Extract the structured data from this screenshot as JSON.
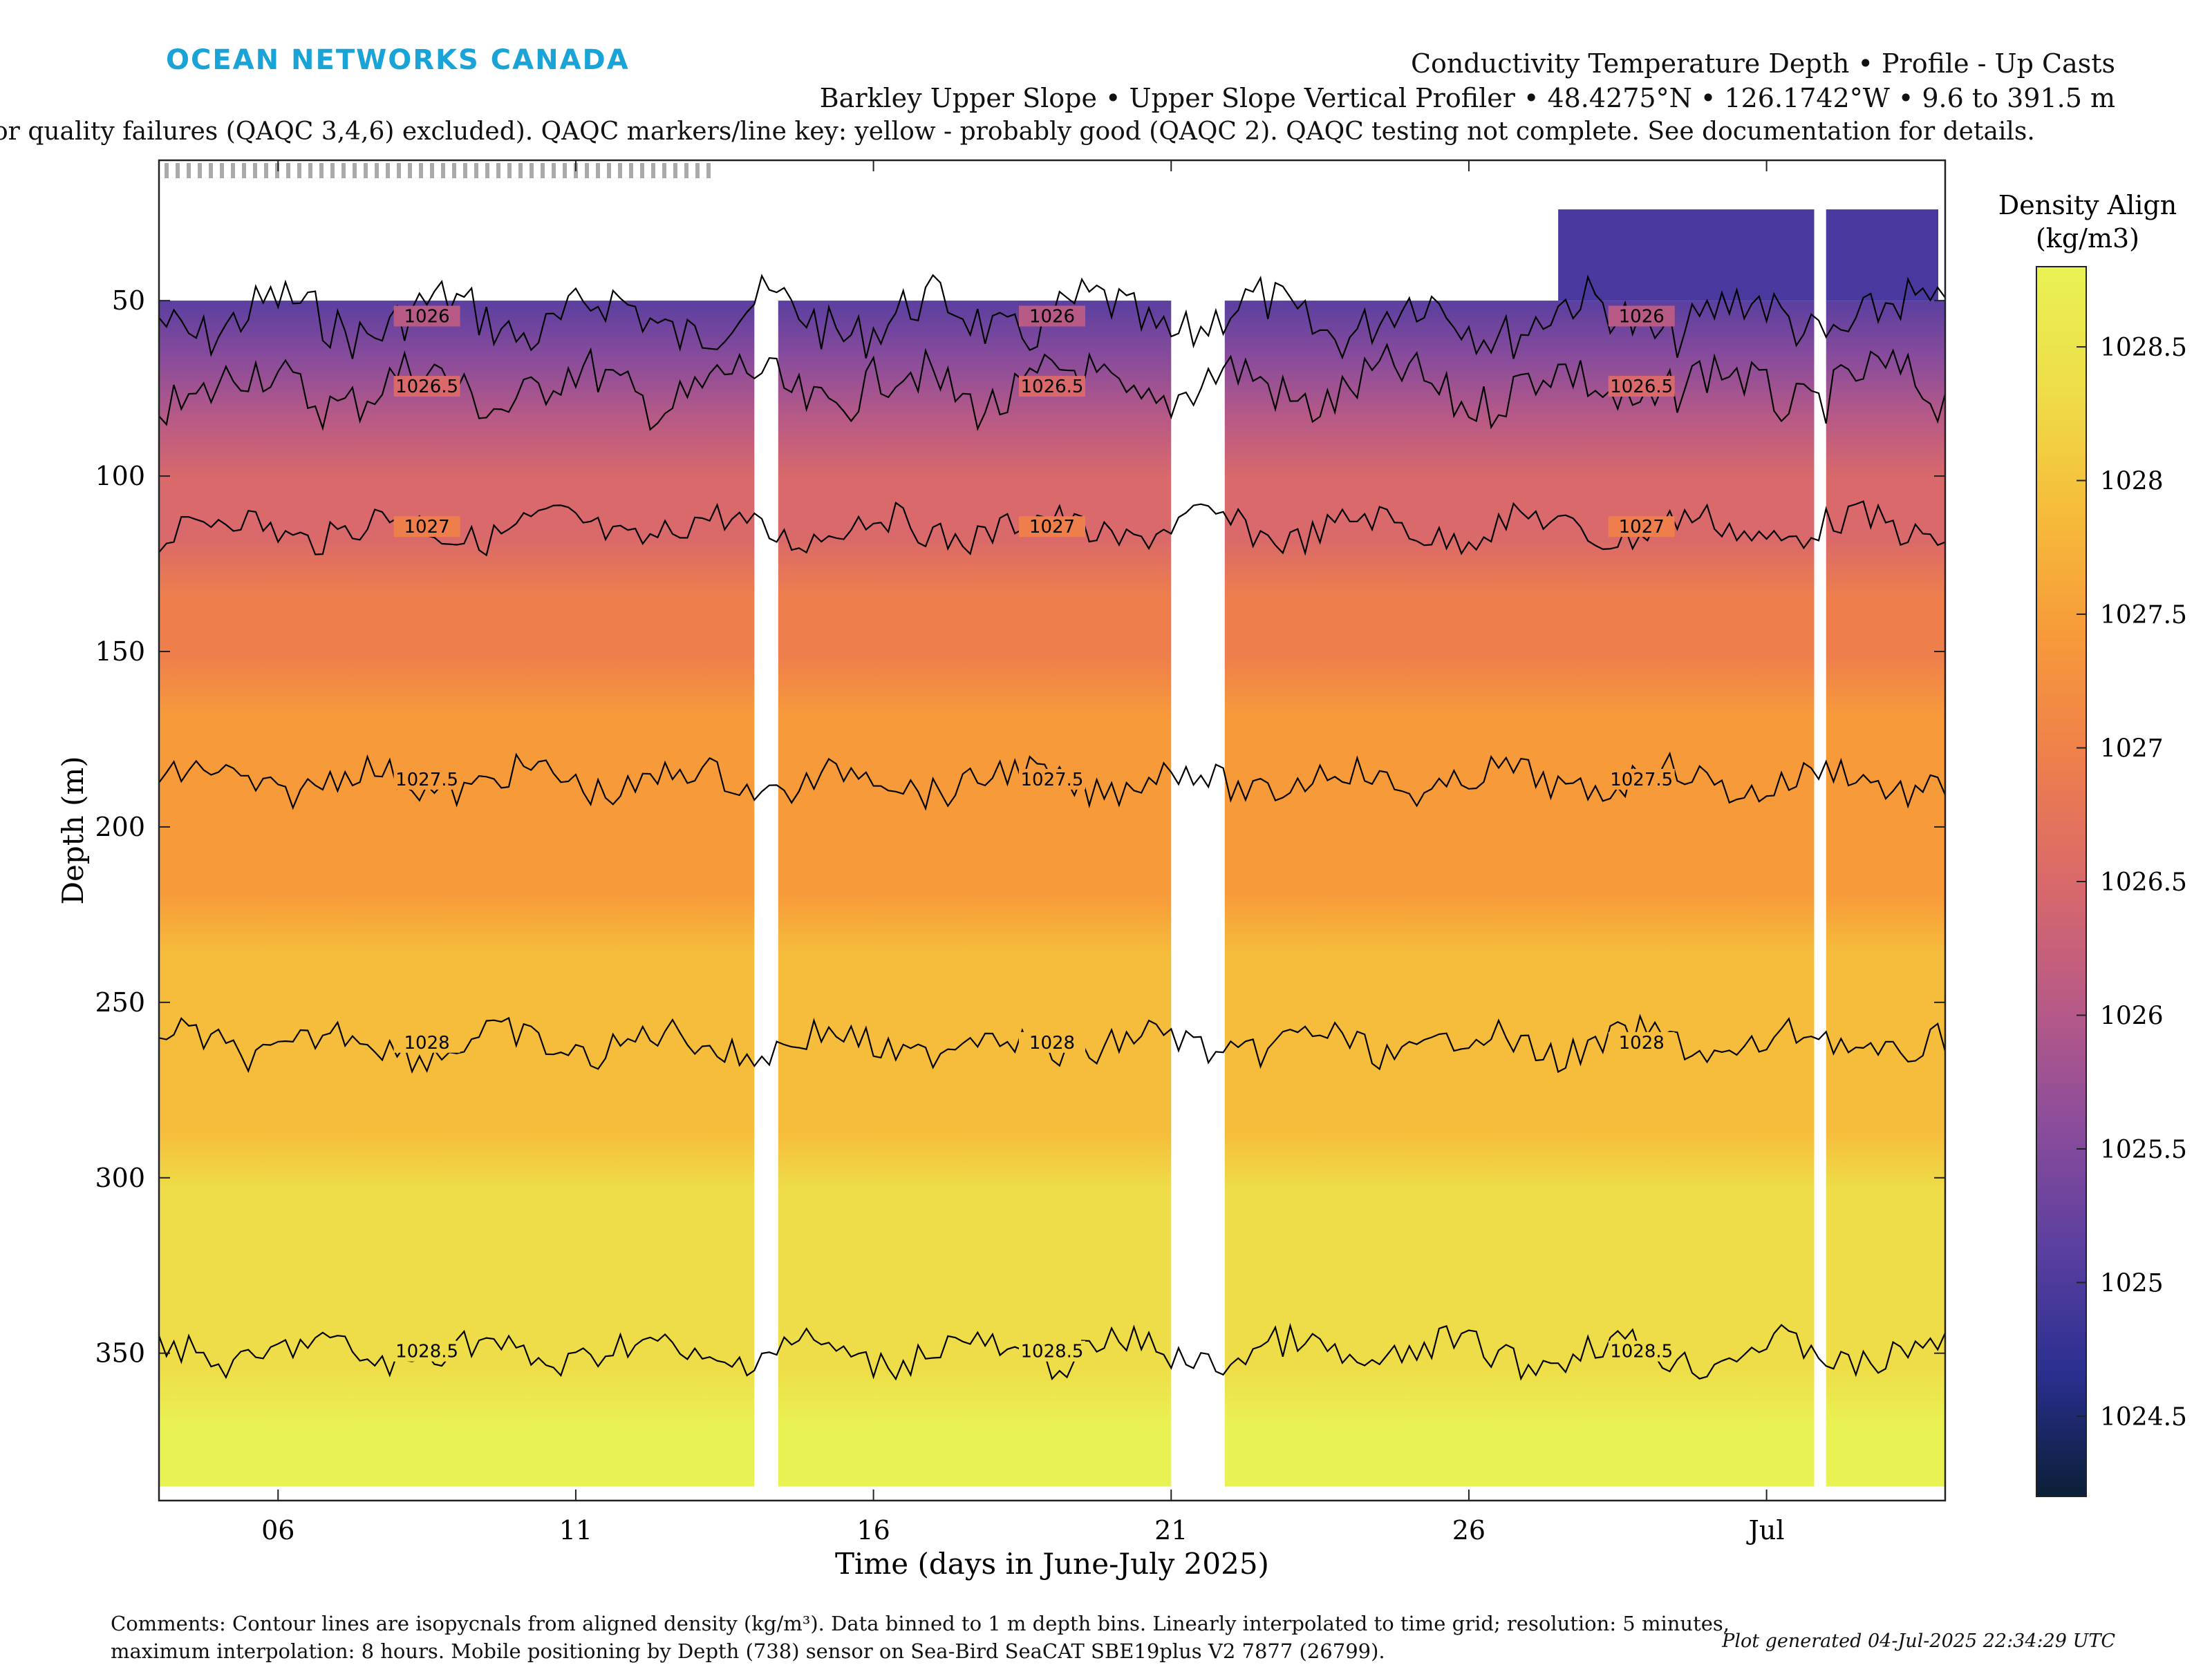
{
  "logo": {
    "text": "OCEAN NETWORKS CANADA"
  },
  "header": {
    "line1": "Conductivity Temperature Depth • Profile - Up Casts",
    "line2": "Barkley Upper Slope • Upper Slope Vertical Profiler • 48.4275°N • 126.1742°W • 9.6 to 391.5 m",
    "line3": "or quality failures (QAQC 3,4,6) excluded). QAQC markers/line key: yellow - probably good (QAQC 2). QAQC testing not complete. See documentation for details."
  },
  "footer": {
    "comment1": "Comments: Contour lines are isopycnals from aligned density (kg/m³). Data binned to 1 m depth bins. Linearly interpolated to time grid; resolution: 5 minutes,",
    "comment2": "maximum interpolation: 8 hours. Mobile positioning by Depth (738) sensor on Sea-Bird SeaCAT SBE19plus V2 7877 (26799).",
    "generated": "Plot generated 04-Jul-2025 22:34:29 UTC"
  },
  "colors": {
    "logo": "#1aa3d6",
    "colormap": [
      "#0b1f36",
      "#2a2f8f",
      "#5a3fa0",
      "#8a4c9b",
      "#b85a86",
      "#d9696a",
      "#ee7f4c",
      "#f79a3a",
      "#f6bc3b",
      "#eedd48",
      "#e9f253"
    ],
    "contour": "#000000",
    "gap": "#ffffff"
  },
  "chart_data": {
    "type": "heatmap",
    "title": "",
    "xlabel": "Time (days in June-July 2025)",
    "ylabel": "Depth (m)",
    "x_range": [
      "2025-06-04",
      "2025-07-04"
    ],
    "y_range": [
      10,
      392
    ],
    "y_reversed": true,
    "x_ticks": [
      "06",
      "11",
      "16",
      "21",
      "26",
      "Jul"
    ],
    "y_ticks": [
      50,
      100,
      150,
      200,
      250,
      300,
      350
    ],
    "colorbar": {
      "label_line1": "Density Align",
      "label_line2": "(kg/m3)",
      "range": [
        1024.2,
        1028.8
      ],
      "ticks": [
        1024.5,
        1025,
        1025.5,
        1026,
        1026.5,
        1027,
        1027.5,
        1028,
        1028.5
      ]
    },
    "data_gaps": [
      {
        "start": "2025-06-14",
        "end": "2025-06-14.4"
      },
      {
        "start": "2025-06-21",
        "end": "2025-06-21.9"
      },
      {
        "start": "2025-07-01.8",
        "end": "2025-07-02"
      }
    ],
    "surface_depth_m": 50,
    "surface_depth_late_m": 24,
    "isopycnals": [
      {
        "level": 1026,
        "mean_depth_m": 55,
        "label": "1026"
      },
      {
        "level": 1026.5,
        "mean_depth_m": 75,
        "label": "1026.5"
      },
      {
        "level": 1027,
        "mean_depth_m": 115,
        "label": "1027"
      },
      {
        "level": 1027.5,
        "mean_depth_m": 187,
        "label": "1027.5"
      },
      {
        "level": 1028,
        "mean_depth_m": 262,
        "label": "1028"
      },
      {
        "level": 1028.5,
        "mean_depth_m": 350,
        "label": "1028.5"
      }
    ],
    "grid": false,
    "legend": "colorbar-right"
  }
}
